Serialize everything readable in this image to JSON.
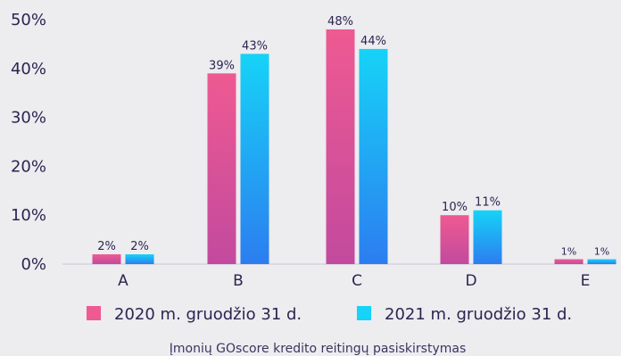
{
  "chart_data": {
    "type": "bar",
    "categories": [
      "A",
      "B",
      "C",
      "D",
      "E"
    ],
    "series": [
      {
        "name": "2020 m. gruodžio 31 d.",
        "values": [
          2,
          39,
          48,
          10,
          1
        ],
        "labels": [
          "2%",
          "39%",
          "48%",
          "10%",
          "1%"
        ]
      },
      {
        "name": "2021 m. gruodžio 31 d.",
        "values": [
          2,
          43,
          44,
          11,
          1
        ],
        "labels": [
          "2%",
          "43%",
          "44%",
          "11%",
          "1%"
        ]
      }
    ],
    "ylim": [
      0,
      50
    ],
    "yticks": [
      "0%",
      "10%",
      "20%",
      "30%",
      "40%",
      "50%"
    ],
    "grid": false,
    "legend": "bottom",
    "caption": "Įmonių GOscore kredito reitingų pasiskirstymas",
    "colors": {
      "series_2020_top": "#ee5a92",
      "series_2020_bottom": "#c24a9e",
      "series_2021_top": "#16d3f7",
      "series_2021_bottom": "#2c7df0",
      "axis": "#c9c6d4",
      "background": "#edecef"
    }
  }
}
